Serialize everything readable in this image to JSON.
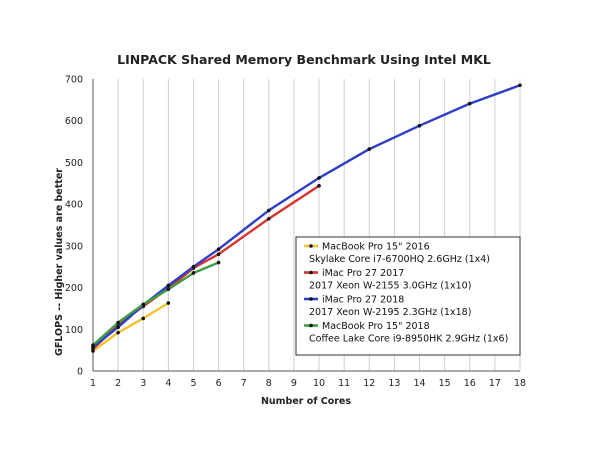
{
  "chart_data": {
    "type": "line",
    "title": "LINPACK Shared Memory Benchmark Using Intel MKL",
    "xlabel": "Number of Cores",
    "ylabel": "GFLOPS -- Higher values are better",
    "xlim": [
      1,
      18
    ],
    "ylim": [
      0,
      700
    ],
    "xticks": [
      1,
      2,
      3,
      4,
      5,
      6,
      7,
      8,
      9,
      10,
      11,
      12,
      13,
      14,
      15,
      16,
      17,
      18
    ],
    "yticks": [
      0,
      100,
      200,
      300,
      400,
      500,
      600,
      700
    ],
    "grid": "vertical",
    "legend_position": "inside-bottom-right",
    "series": [
      {
        "name": "MacBook Pro 15\" 2016",
        "detail": "Skylake Core i7-6700HQ 2.6GHz (1x4)",
        "color": "#f5c330",
        "x": [
          1,
          2,
          3,
          4
        ],
        "values": [
          48,
          92,
          126,
          163
        ]
      },
      {
        "name": "iMac Pro 27 2017",
        "detail": "2017 Xeon W-2155 3.0GHz (1x10)",
        "color": "#d9322b",
        "x": [
          1,
          2,
          3,
          4,
          5,
          6,
          8,
          10
        ],
        "values": [
          53,
          110,
          155,
          198,
          247,
          280,
          365,
          444
        ]
      },
      {
        "name": "iMac Pro 27 2018",
        "detail": "2017 Xeon W-2195 2.3GHz (1x18)",
        "color": "#2f3ec7",
        "x": [
          1,
          2,
          3,
          4,
          5,
          6,
          8,
          10,
          12,
          14,
          16,
          18
        ],
        "values": [
          57,
          105,
          158,
          205,
          250,
          292,
          385,
          463,
          532,
          588,
          641,
          685
        ]
      },
      {
        "name": "MacBook Pro 15\" 2018",
        "detail": "Coffee Lake Core i9-8950HK 2.9GHz (1x6)",
        "color": "#3f9e45",
        "x": [
          1,
          2,
          3,
          4,
          5,
          6
        ],
        "values": [
          62,
          116,
          160,
          196,
          235,
          260
        ]
      }
    ]
  }
}
